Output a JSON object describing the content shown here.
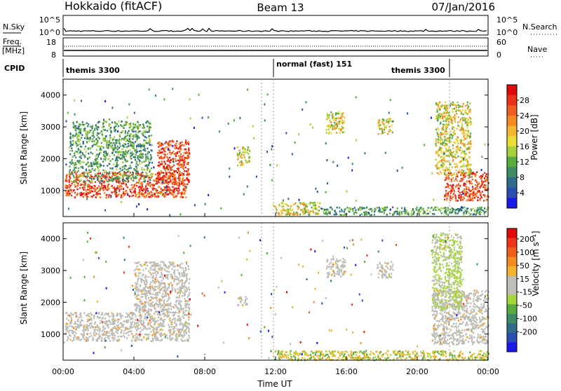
{
  "header": {
    "station": "Hokkaido (fitACF)",
    "beam": "Beam 13",
    "date": "07/Jan/2016"
  },
  "noise_panel": {
    "left_label": "N.Sky",
    "left_ticks": [
      "10^5",
      "10^0"
    ],
    "right_ticks": [
      "10^5",
      "10^0"
    ],
    "right_label": "N.Search"
  },
  "freq_panel": {
    "left_label_1": "Freq.",
    "left_label_2": "[MHz]",
    "left_ticks": [
      "18",
      "8"
    ],
    "right_ticks": [
      "60",
      "0"
    ],
    "right_label": "Nave"
  },
  "cpid_panel": {
    "label": "CPID",
    "segments": [
      "themis 3300",
      "normal (fast) 151",
      "themis 3300"
    ]
  },
  "chart_data": [
    {
      "type": "heatmap",
      "name": "power",
      "ylabel": "Slant Range [km]",
      "yticks": [
        1000,
        2000,
        3000,
        4000
      ],
      "ylim": [
        180,
        4500
      ],
      "xlim": [
        0,
        24
      ],
      "colorbar": {
        "label": "Power [dB]",
        "ticks": [
          "4",
          "8",
          "12",
          "16",
          "20",
          "24",
          "28"
        ],
        "colors": [
          "#1a1ae8",
          "#2a4fb0",
          "#2f6b8a",
          "#3d8c63",
          "#58ab3e",
          "#a8cf3c",
          "#e9dd37",
          "#f4b730",
          "#f38a26",
          "#ef5d20",
          "#e93219",
          "#e00a0a"
        ]
      },
      "regions": [
        {
          "x": [
            0.1,
            6.9
          ],
          "y": [
            800,
            1600
          ],
          "level": "high"
        },
        {
          "x": [
            5.3,
            7.1
          ],
          "y": [
            1200,
            2600
          ],
          "level": "high"
        },
        {
          "x": [
            0.3,
            5.0
          ],
          "y": [
            1300,
            3200
          ],
          "level": "low"
        },
        {
          "x": [
            9.8,
            10.5
          ],
          "y": [
            1800,
            2400
          ],
          "level": "mid"
        },
        {
          "x": [
            14.8,
            15.9
          ],
          "y": [
            2800,
            3500
          ],
          "level": "mid"
        },
        {
          "x": [
            17.7,
            18.6
          ],
          "y": [
            2800,
            3300
          ],
          "level": "mid"
        },
        {
          "x": [
            21.5,
            24.0
          ],
          "y": [
            700,
            1600
          ],
          "level": "high"
        },
        {
          "x": [
            21.0,
            23.0
          ],
          "y": [
            1500,
            3800
          ],
          "level": "mid"
        },
        {
          "x": [
            11.8,
            14.5
          ],
          "y": [
            250,
            650
          ],
          "level": "mid"
        },
        {
          "x": [
            14.5,
            24.0
          ],
          "y": [
            250,
            500
          ],
          "level": "low"
        }
      ]
    },
    {
      "type": "heatmap",
      "name": "velocity",
      "ylabel": "Slant Range [km]",
      "yticks": [
        1000,
        2000,
        3000,
        4000
      ],
      "ylim": [
        180,
        4500
      ],
      "xlim": [
        0,
        24
      ],
      "xticks": [
        "00:00",
        "04:00",
        "08:00",
        "12:00",
        "16:00",
        "20:00",
        "00:00"
      ],
      "xlabel": "Time UT",
      "colorbar": {
        "label": "Velocity [m s⁻¹]",
        "ticks": [
          "200",
          "100",
          "50",
          "15",
          "-15",
          "-50",
          "-100",
          "-200"
        ],
        "colors": [
          "#1a1ae8",
          "#2a4fb0",
          "#2f6b8a",
          "#3d8c63",
          "#58ab3e",
          "#a6d73a",
          "#bfbfb8",
          "#bfbfb8",
          "#f2b42c",
          "#f48b23",
          "#f05d1d",
          "#ee3418",
          "#e00a0a"
        ]
      },
      "regions": [
        {
          "x": [
            0.1,
            7.1
          ],
          "y": [
            800,
            1700
          ],
          "level": "gray"
        },
        {
          "x": [
            4.0,
            7.1
          ],
          "y": [
            1700,
            3300
          ],
          "level": "gray"
        },
        {
          "x": [
            9.8,
            10.4
          ],
          "y": [
            1900,
            2200
          ],
          "level": "gray"
        },
        {
          "x": [
            14.8,
            15.9
          ],
          "y": [
            2800,
            3400
          ],
          "level": "gray"
        },
        {
          "x": [
            17.7,
            18.6
          ],
          "y": [
            2800,
            3300
          ],
          "level": "gray"
        },
        {
          "x": [
            20.8,
            24.0
          ],
          "y": [
            700,
            2400
          ],
          "level": "gray"
        },
        {
          "x": [
            20.8,
            22.5
          ],
          "y": [
            1800,
            4200
          ],
          "level": "green"
        },
        {
          "x": [
            11.8,
            24.0
          ],
          "y": [
            200,
            500
          ],
          "level": "orange"
        }
      ]
    }
  ]
}
